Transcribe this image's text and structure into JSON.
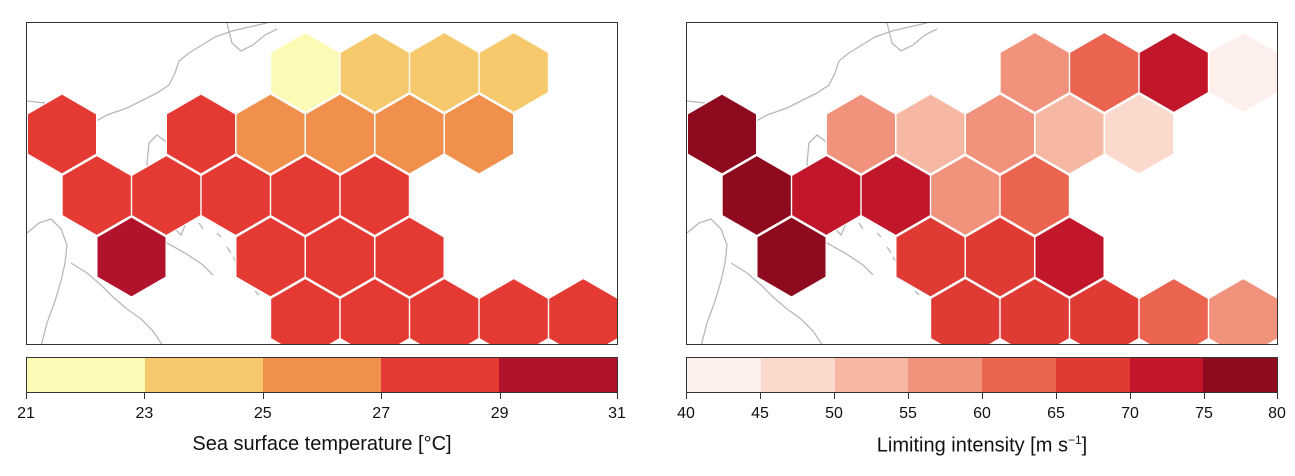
{
  "left_panel": {
    "colorbar_title": "Sea surface temperature [°C]",
    "colorbar_ticks": [
      "21",
      "23",
      "25",
      "27",
      "29",
      "31"
    ],
    "bins": [
      {
        "range": "21–23",
        "color": "#fdfab6"
      },
      {
        "range": "23–25",
        "color": "#f6c96c"
      },
      {
        "range": "25–27",
        "color": "#f0904c"
      },
      {
        "range": "27–29",
        "color": "#e53a34"
      },
      {
        "range": "29–31",
        "color": "#b1122c"
      }
    ],
    "hexes": [
      {
        "row": 0,
        "col": 3.5,
        "bin": 0
      },
      {
        "row": 0,
        "col": 4.5,
        "bin": 1
      },
      {
        "row": 0,
        "col": 5.5,
        "bin": 1
      },
      {
        "row": 0,
        "col": 6.5,
        "bin": 1
      },
      {
        "row": 1,
        "col": 0,
        "bin": 3
      },
      {
        "row": 1,
        "col": 2,
        "bin": 3
      },
      {
        "row": 1,
        "col": 3,
        "bin": 2
      },
      {
        "row": 1,
        "col": 4,
        "bin": 2
      },
      {
        "row": 1,
        "col": 5,
        "bin": 2
      },
      {
        "row": 1,
        "col": 6,
        "bin": 2
      },
      {
        "row": 2,
        "col": 0.5,
        "bin": 3
      },
      {
        "row": 2,
        "col": 1.5,
        "bin": 3
      },
      {
        "row": 2,
        "col": 2.5,
        "bin": 3
      },
      {
        "row": 2,
        "col": 3.5,
        "bin": 3
      },
      {
        "row": 2,
        "col": 4.5,
        "bin": 3
      },
      {
        "row": 3,
        "col": 1,
        "bin": 4
      },
      {
        "row": 3,
        "col": 3,
        "bin": 3
      },
      {
        "row": 3,
        "col": 4,
        "bin": 3
      },
      {
        "row": 3,
        "col": 5,
        "bin": 3
      },
      {
        "row": 4,
        "col": 3.5,
        "bin": 3
      },
      {
        "row": 4,
        "col": 4.5,
        "bin": 3
      },
      {
        "row": 4,
        "col": 5.5,
        "bin": 3
      },
      {
        "row": 4,
        "col": 6.5,
        "bin": 3
      },
      {
        "row": 4,
        "col": 7.5,
        "bin": 3
      }
    ]
  },
  "right_panel": {
    "colorbar_title": "Limiting intensity [m s",
    "colorbar_title_sup": "−1",
    "colorbar_title_end": "]",
    "colorbar_ticks": [
      "40",
      "45",
      "50",
      "55",
      "60",
      "65",
      "70",
      "75",
      "80"
    ],
    "bins": [
      {
        "range": "40–45",
        "color": "#fdf0ec"
      },
      {
        "range": "45–50",
        "color": "#fbd9cc"
      },
      {
        "range": "50–55",
        "color": "#f6b8a2"
      },
      {
        "range": "55–60",
        "color": "#f1937c"
      },
      {
        "range": "60–65",
        "color": "#ea6450"
      },
      {
        "range": "65–70",
        "color": "#e03a34"
      },
      {
        "range": "70–75",
        "color": "#c2162b"
      },
      {
        "range": "75–80",
        "color": "#8e0a1f"
      }
    ],
    "hexes": [
      {
        "row": 0,
        "col": 4.5,
        "bin": 3
      },
      {
        "row": 0,
        "col": 5.5,
        "bin": 4
      },
      {
        "row": 0,
        "col": 6.5,
        "bin": 6
      },
      {
        "row": 0,
        "col": 7.5,
        "bin": 0
      },
      {
        "row": 1,
        "col": 0,
        "bin": 7
      },
      {
        "row": 1,
        "col": 2,
        "bin": 3
      },
      {
        "row": 1,
        "col": 3,
        "bin": 2
      },
      {
        "row": 1,
        "col": 4,
        "bin": 3
      },
      {
        "row": 1,
        "col": 5,
        "bin": 2
      },
      {
        "row": 1,
        "col": 6,
        "bin": 1
      },
      {
        "row": 2,
        "col": 0.5,
        "bin": 7
      },
      {
        "row": 2,
        "col": 1.5,
        "bin": 6
      },
      {
        "row": 2,
        "col": 2.5,
        "bin": 6
      },
      {
        "row": 2,
        "col": 3.5,
        "bin": 3
      },
      {
        "row": 2,
        "col": 4.5,
        "bin": 4
      },
      {
        "row": 3,
        "col": 1,
        "bin": 7
      },
      {
        "row": 3,
        "col": 3,
        "bin": 5
      },
      {
        "row": 3,
        "col": 4,
        "bin": 5
      },
      {
        "row": 3,
        "col": 5,
        "bin": 6
      },
      {
        "row": 4,
        "col": 3.5,
        "bin": 5
      },
      {
        "row": 4,
        "col": 4.5,
        "bin": 5
      },
      {
        "row": 4,
        "col": 5.5,
        "bin": 5
      },
      {
        "row": 4,
        "col": 6.5,
        "bin": 4
      },
      {
        "row": 4,
        "col": 7.5,
        "bin": 3
      }
    ]
  },
  "coastline_color": "#b8b8b8",
  "hex_edge_color": "#ffffff"
}
